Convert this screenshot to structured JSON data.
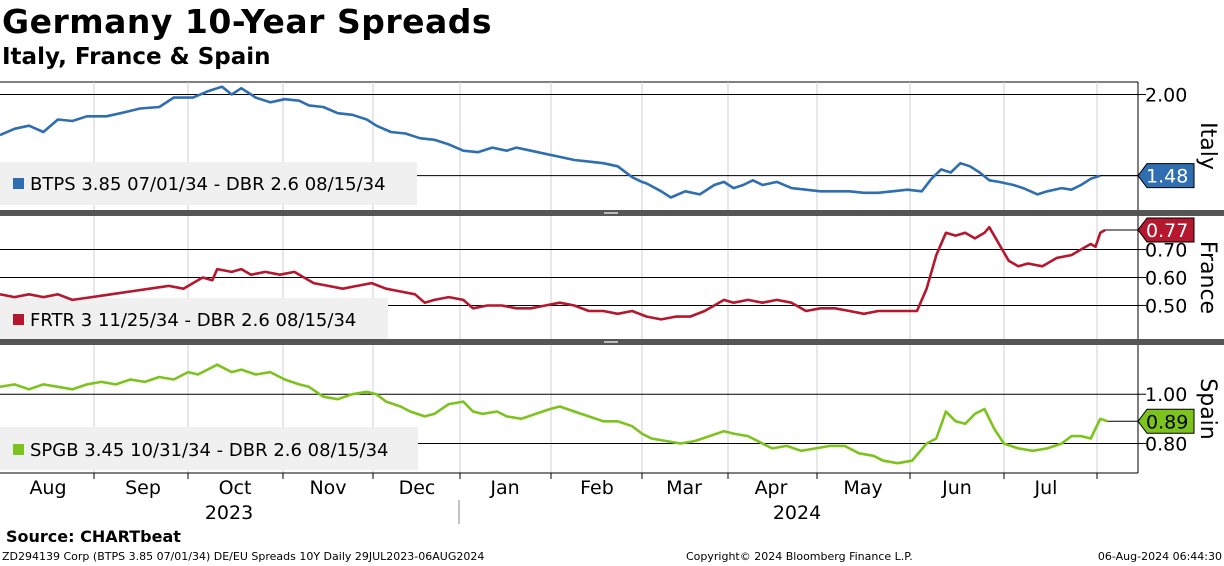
{
  "header": {
    "title": "Germany 10-Year Spreads",
    "subtitle": "Italy, France & Spain"
  },
  "footer": {
    "source": "Source: CHARTbeat",
    "left": "ZD294139 Corp (BTPS 3.85 07/01/34) DE/EU Spreads 10Y  Daily 29JUL2023-06AUG2024",
    "middle": "Copyright© 2024 Bloomberg Finance L.P.",
    "right": "06-Aug-2024 06:44:30"
  },
  "chart_data": {
    "type": "line",
    "x_axis": {
      "months": [
        "Aug",
        "Sep",
        "Oct",
        "Nov",
        "Dec",
        "Jan",
        "Feb",
        "Mar",
        "Apr",
        "May",
        "Jun",
        "Jul"
      ],
      "years": [
        "2023",
        "2024"
      ]
    },
    "panels": [
      {
        "name": "Italy",
        "legend": "BTPS 3.85 07/01/34 - DBR 2.6 08/15/34",
        "color": "#2f6eb0",
        "last_value": "1.48",
        "ylim": [
          1.26,
          2.08
        ],
        "yticks": [
          {
            "v": 2.0,
            "label": "2.00"
          },
          {
            "v": 1.48,
            "label": ""
          }
        ],
        "points": [
          [
            0,
            1.74
          ],
          [
            6,
            1.78
          ],
          [
            12,
            1.8
          ],
          [
            18,
            1.76
          ],
          [
            24,
            1.84
          ],
          [
            30,
            1.83
          ],
          [
            36,
            1.86
          ],
          [
            44,
            1.86
          ],
          [
            50,
            1.88
          ],
          [
            58,
            1.91
          ],
          [
            66,
            1.92
          ],
          [
            72,
            1.98
          ],
          [
            80,
            1.98
          ],
          [
            86,
            2.02
          ],
          [
            92,
            2.05
          ],
          [
            96,
            2.0
          ],
          [
            100,
            2.04
          ],
          [
            106,
            1.98
          ],
          [
            112,
            1.95
          ],
          [
            118,
            1.97
          ],
          [
            124,
            1.96
          ],
          [
            128,
            1.93
          ],
          [
            134,
            1.92
          ],
          [
            140,
            1.88
          ],
          [
            146,
            1.87
          ],
          [
            152,
            1.84
          ],
          [
            156,
            1.8
          ],
          [
            162,
            1.76
          ],
          [
            168,
            1.75
          ],
          [
            174,
            1.72
          ],
          [
            180,
            1.71
          ],
          [
            186,
            1.68
          ],
          [
            192,
            1.64
          ],
          [
            198,
            1.63
          ],
          [
            204,
            1.66
          ],
          [
            210,
            1.64
          ],
          [
            214,
            1.66
          ],
          [
            220,
            1.64
          ],
          [
            226,
            1.62
          ],
          [
            232,
            1.6
          ],
          [
            238,
            1.58
          ],
          [
            244,
            1.57
          ],
          [
            250,
            1.56
          ],
          [
            256,
            1.54
          ],
          [
            262,
            1.47
          ],
          [
            266,
            1.44
          ],
          [
            268,
            1.43
          ],
          [
            274,
            1.38
          ],
          [
            278,
            1.34
          ],
          [
            284,
            1.38
          ],
          [
            290,
            1.36
          ],
          [
            296,
            1.42
          ],
          [
            300,
            1.44
          ],
          [
            304,
            1.4
          ],
          [
            308,
            1.42
          ],
          [
            312,
            1.45
          ],
          [
            316,
            1.42
          ],
          [
            322,
            1.44
          ],
          [
            328,
            1.4
          ],
          [
            334,
            1.39
          ],
          [
            340,
            1.38
          ],
          [
            346,
            1.38
          ],
          [
            352,
            1.38
          ],
          [
            358,
            1.37
          ],
          [
            364,
            1.37
          ],
          [
            370,
            1.38
          ],
          [
            376,
            1.39
          ],
          [
            382,
            1.38
          ],
          [
            386,
            1.46
          ],
          [
            390,
            1.52
          ],
          [
            394,
            1.5
          ],
          [
            398,
            1.56
          ],
          [
            402,
            1.54
          ],
          [
            406,
            1.5
          ],
          [
            410,
            1.45
          ],
          [
            414,
            1.44
          ],
          [
            420,
            1.42
          ],
          [
            424,
            1.4
          ],
          [
            430,
            1.36
          ],
          [
            434,
            1.38
          ],
          [
            440,
            1.4
          ],
          [
            444,
            1.39
          ],
          [
            448,
            1.42
          ],
          [
            452,
            1.46
          ],
          [
            456,
            1.48
          ]
        ]
      },
      {
        "name": "France",
        "legend": "FRTR 3 11/25/34 - DBR 2.6 08/15/34",
        "color": "#b5172e",
        "last_value": "0.77",
        "ylim": [
          0.38,
          0.82
        ],
        "yticks": [
          {
            "v": 0.7,
            "label": "0.70"
          },
          {
            "v": 0.6,
            "label": "0.60"
          },
          {
            "v": 0.5,
            "label": "0.50"
          }
        ],
        "points": [
          [
            0,
            0.54
          ],
          [
            6,
            0.53
          ],
          [
            12,
            0.54
          ],
          [
            18,
            0.53
          ],
          [
            24,
            0.54
          ],
          [
            30,
            0.52
          ],
          [
            38,
            0.53
          ],
          [
            46,
            0.54
          ],
          [
            54,
            0.55
          ],
          [
            62,
            0.56
          ],
          [
            70,
            0.57
          ],
          [
            76,
            0.56
          ],
          [
            80,
            0.58
          ],
          [
            84,
            0.6
          ],
          [
            88,
            0.59
          ],
          [
            90,
            0.63
          ],
          [
            96,
            0.62
          ],
          [
            100,
            0.63
          ],
          [
            104,
            0.61
          ],
          [
            110,
            0.62
          ],
          [
            116,
            0.61
          ],
          [
            122,
            0.62
          ],
          [
            126,
            0.6
          ],
          [
            130,
            0.58
          ],
          [
            136,
            0.57
          ],
          [
            142,
            0.56
          ],
          [
            148,
            0.57
          ],
          [
            154,
            0.58
          ],
          [
            160,
            0.56
          ],
          [
            166,
            0.55
          ],
          [
            172,
            0.54
          ],
          [
            176,
            0.51
          ],
          [
            180,
            0.52
          ],
          [
            186,
            0.53
          ],
          [
            192,
            0.52
          ],
          [
            196,
            0.49
          ],
          [
            202,
            0.5
          ],
          [
            208,
            0.5
          ],
          [
            214,
            0.49
          ],
          [
            220,
            0.49
          ],
          [
            226,
            0.5
          ],
          [
            232,
            0.51
          ],
          [
            238,
            0.5
          ],
          [
            244,
            0.48
          ],
          [
            250,
            0.48
          ],
          [
            256,
            0.47
          ],
          [
            262,
            0.48
          ],
          [
            268,
            0.46
          ],
          [
            274,
            0.45
          ],
          [
            280,
            0.46
          ],
          [
            286,
            0.46
          ],
          [
            292,
            0.48
          ],
          [
            296,
            0.5
          ],
          [
            300,
            0.52
          ],
          [
            304,
            0.51
          ],
          [
            310,
            0.52
          ],
          [
            316,
            0.51
          ],
          [
            322,
            0.52
          ],
          [
            328,
            0.51
          ],
          [
            334,
            0.48
          ],
          [
            340,
            0.49
          ],
          [
            346,
            0.49
          ],
          [
            352,
            0.48
          ],
          [
            358,
            0.47
          ],
          [
            364,
            0.48
          ],
          [
            370,
            0.48
          ],
          [
            376,
            0.48
          ],
          [
            380,
            0.48
          ],
          [
            384,
            0.56
          ],
          [
            388,
            0.68
          ],
          [
            392,
            0.76
          ],
          [
            396,
            0.75
          ],
          [
            400,
            0.76
          ],
          [
            404,
            0.74
          ],
          [
            408,
            0.76
          ],
          [
            410,
            0.78
          ],
          [
            414,
            0.72
          ],
          [
            418,
            0.66
          ],
          [
            422,
            0.64
          ],
          [
            426,
            0.65
          ],
          [
            432,
            0.64
          ],
          [
            438,
            0.67
          ],
          [
            444,
            0.68
          ],
          [
            448,
            0.7
          ],
          [
            452,
            0.72
          ],
          [
            454,
            0.71
          ],
          [
            456,
            0.76
          ],
          [
            458,
            0.77
          ]
        ]
      },
      {
        "name": "Spain",
        "legend": "SPGB 3.45 10/31/34 - DBR 2.6 08/15/34",
        "color": "#7cc31d",
        "last_value": "0.89",
        "ylim": [
          0.68,
          1.2
        ],
        "yticks": [
          {
            "v": 1.0,
            "label": "1.00"
          },
          {
            "v": 0.8,
            "label": "0.80"
          }
        ],
        "points": [
          [
            0,
            1.03
          ],
          [
            6,
            1.04
          ],
          [
            12,
            1.02
          ],
          [
            18,
            1.04
          ],
          [
            24,
            1.03
          ],
          [
            30,
            1.02
          ],
          [
            36,
            1.04
          ],
          [
            42,
            1.05
          ],
          [
            48,
            1.04
          ],
          [
            54,
            1.06
          ],
          [
            60,
            1.05
          ],
          [
            66,
            1.07
          ],
          [
            72,
            1.06
          ],
          [
            78,
            1.09
          ],
          [
            82,
            1.08
          ],
          [
            86,
            1.1
          ],
          [
            90,
            1.12
          ],
          [
            96,
            1.09
          ],
          [
            100,
            1.1
          ],
          [
            106,
            1.08
          ],
          [
            112,
            1.09
          ],
          [
            118,
            1.06
          ],
          [
            124,
            1.04
          ],
          [
            128,
            1.03
          ],
          [
            134,
            0.99
          ],
          [
            140,
            0.98
          ],
          [
            146,
            1.0
          ],
          [
            152,
            1.01
          ],
          [
            156,
            1.0
          ],
          [
            160,
            0.97
          ],
          [
            166,
            0.95
          ],
          [
            170,
            0.93
          ],
          [
            176,
            0.91
          ],
          [
            180,
            0.92
          ],
          [
            186,
            0.96
          ],
          [
            192,
            0.97
          ],
          [
            196,
            0.93
          ],
          [
            200,
            0.92
          ],
          [
            206,
            0.93
          ],
          [
            210,
            0.91
          ],
          [
            216,
            0.9
          ],
          [
            222,
            0.92
          ],
          [
            228,
            0.94
          ],
          [
            232,
            0.95
          ],
          [
            238,
            0.93
          ],
          [
            244,
            0.91
          ],
          [
            250,
            0.89
          ],
          [
            256,
            0.89
          ],
          [
            262,
            0.87
          ],
          [
            266,
            0.84
          ],
          [
            270,
            0.82
          ],
          [
            276,
            0.81
          ],
          [
            282,
            0.8
          ],
          [
            288,
            0.81
          ],
          [
            294,
            0.83
          ],
          [
            300,
            0.85
          ],
          [
            304,
            0.84
          ],
          [
            310,
            0.83
          ],
          [
            316,
            0.8
          ],
          [
            320,
            0.78
          ],
          [
            326,
            0.79
          ],
          [
            332,
            0.77
          ],
          [
            338,
            0.78
          ],
          [
            344,
            0.79
          ],
          [
            350,
            0.79
          ],
          [
            356,
            0.76
          ],
          [
            362,
            0.75
          ],
          [
            366,
            0.73
          ],
          [
            372,
            0.72
          ],
          [
            378,
            0.73
          ],
          [
            384,
            0.8
          ],
          [
            388,
            0.82
          ],
          [
            392,
            0.93
          ],
          [
            396,
            0.89
          ],
          [
            400,
            0.88
          ],
          [
            404,
            0.92
          ],
          [
            408,
            0.94
          ],
          [
            412,
            0.86
          ],
          [
            416,
            0.8
          ],
          [
            422,
            0.78
          ],
          [
            428,
            0.77
          ],
          [
            434,
            0.78
          ],
          [
            440,
            0.8
          ],
          [
            444,
            0.83
          ],
          [
            448,
            0.83
          ],
          [
            452,
            0.82
          ],
          [
            456,
            0.9
          ],
          [
            459,
            0.89
          ]
        ]
      }
    ]
  }
}
